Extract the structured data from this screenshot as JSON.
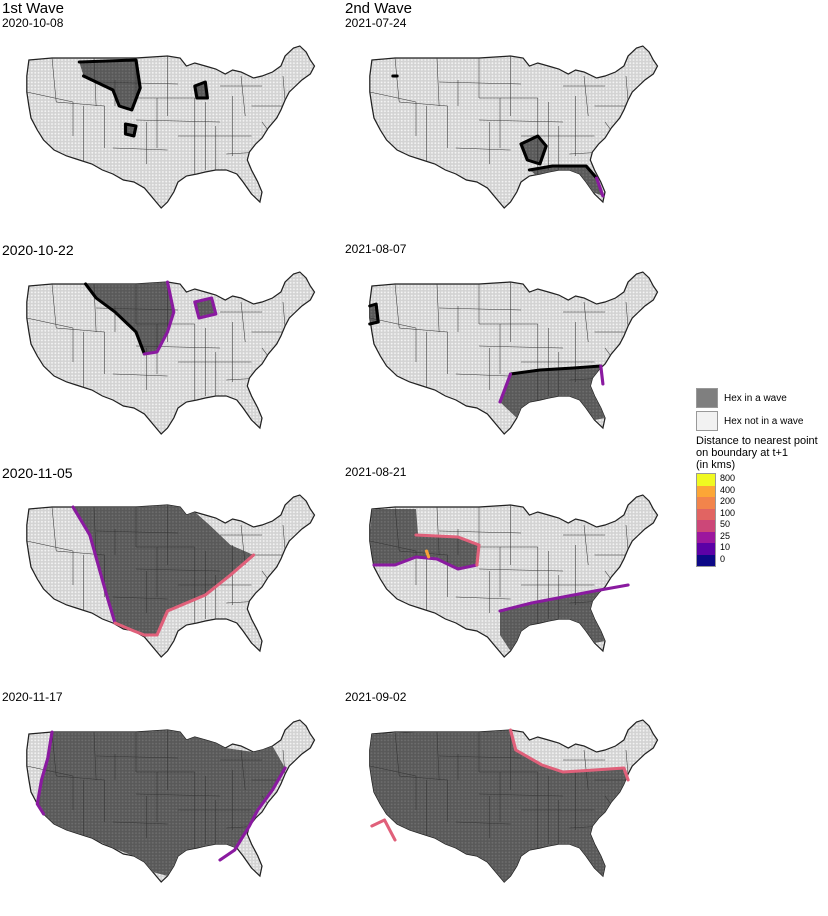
{
  "columns": [
    {
      "title": "1st Wave"
    },
    {
      "title": "2nd Wave"
    }
  ],
  "panels": [
    {
      "date": "2020-10-08",
      "wave": "w1a"
    },
    {
      "date": "2021-07-24",
      "wave": "w2a"
    },
    {
      "date": "2020-10-22",
      "wave": "w1b"
    },
    {
      "date": "2021-08-07",
      "wave": "w2b"
    },
    {
      "date": "2020-11-05",
      "wave": "w1c"
    },
    {
      "date": "2021-08-21",
      "wave": "w2c"
    },
    {
      "date": "2020-11-17",
      "wave": "w1d"
    },
    {
      "date": "2021-09-02",
      "wave": "w2d"
    }
  ],
  "legend": {
    "wave_in": "Hex in a wave",
    "wave_out": "Hex not in a wave",
    "distance_title_1": "Distance to nearest point",
    "distance_title_2": "on boundary at t+1",
    "distance_title_3": "(in kms)",
    "scale": [
      {
        "label": "800",
        "color": "#f0f921"
      },
      {
        "label": "400",
        "color": "#fca636"
      },
      {
        "label": "200",
        "color": "#f2844b"
      },
      {
        "label": "100",
        "color": "#e16462"
      },
      {
        "label": "50",
        "color": "#cc4778"
      },
      {
        "label": "25",
        "color": "#9c179e"
      },
      {
        "label": "10",
        "color": "#5c01a6"
      },
      {
        "label": "0",
        "color": "#0d0887"
      }
    ]
  },
  "colors": {
    "in_wave": "#595959",
    "not_in_wave": "#d3d3d3",
    "border_black": "#000000",
    "border_purple": "#8a1aa0",
    "border_pink": "#e0607a",
    "border_orange": "#f9a13a"
  }
}
